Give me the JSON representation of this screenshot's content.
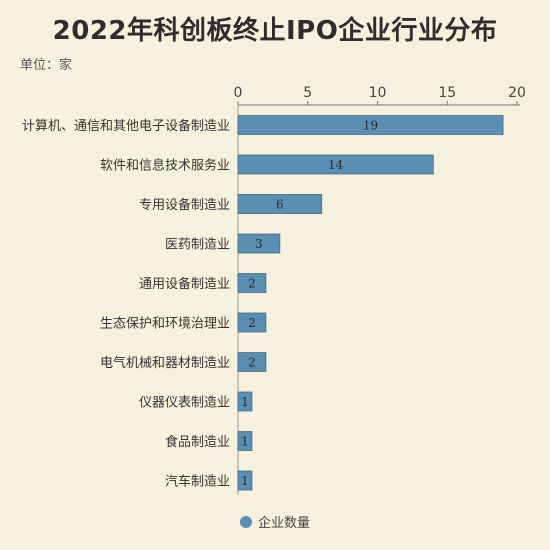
{
  "title": "2022年科创板终止IPO企业行业分布",
  "unit": "单位：家",
  "legend_label": "企业数量",
  "bar_color": "#5a8fb3",
  "chart_data": {
    "type": "bar",
    "orientation": "horizontal",
    "title": "2022年科创板终止IPO企业行业分布",
    "categories": [
      "计算机、通信和其他电子设备制造业",
      "软件和信息技术服务业",
      "专用设备制造业",
      "医药制造业",
      "通用设备制造业",
      "生态保护和环境治理业",
      "电气机械和器材制造业",
      "仪器仪表制造业",
      "食品制造业",
      "汽车制造业"
    ],
    "series": [
      {
        "name": "企业数量",
        "values": [
          19,
          14,
          6,
          3,
          2,
          2,
          2,
          1,
          1,
          1
        ]
      }
    ],
    "xlim": [
      0,
      20
    ],
    "xticks": [
      0,
      5,
      10,
      15,
      20
    ],
    "axis_position": "top",
    "legend_position": "bottom-center",
    "grid": false
  }
}
